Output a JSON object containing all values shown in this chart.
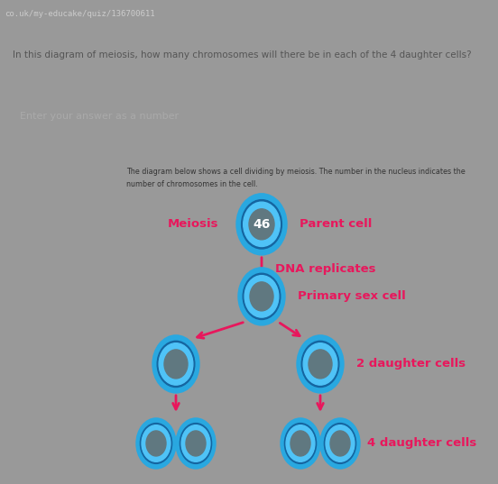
{
  "url_text": "co.uk/my-educake/quiz/136700611",
  "question_text": "In this diagram of meiosis, how many chromosomes will there be in each of the 4 daughter cells?",
  "answer_placeholder": "Enter your answer as a number",
  "description_line1": "The diagram below shows a cell dividing by meiosis. The number in the nucleus indicates the",
  "description_line2": "number of chromosomes in the cell.",
  "label_meiosis": "Meiosis",
  "label_46": "46",
  "label_parent": "Parent cell",
  "label_dna": "DNA replicates",
  "label_primary": "Primary sex cell",
  "label_2daughter": "2 daughter cells",
  "label_4daughter": "4 daughter cells",
  "pink": "#e8175c",
  "cell_blue_outer": "#29a8e0",
  "cell_blue_mid": "#4fc3f7",
  "cell_gray": "#607880",
  "cell_dark_ring": "#1a6fa0",
  "url_bar_bg": "#3a3a3a",
  "url_text_color": "#cccccc",
  "question_bg": "#e8e8e8",
  "question_text_color": "#555555",
  "answer_bg": "#ffffff",
  "answer_text_color": "#aaaaaa",
  "answer_border": "#cccccc",
  "separator_bg": "#888888",
  "diagram_bg": "#f0f0f0",
  "diagram_border_left": "#4ab8b8",
  "desc_text_color": "#333333",
  "fig_bg": "#999999"
}
